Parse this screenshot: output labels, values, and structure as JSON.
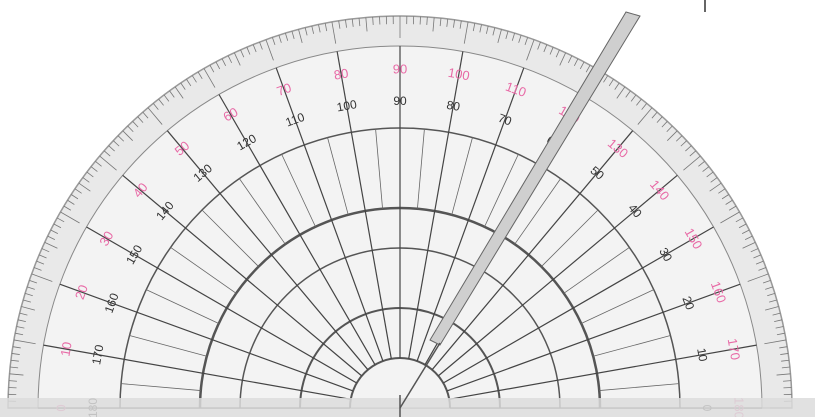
{
  "outer_scale": {
    "labels": [
      "0",
      "10",
      "20",
      "30",
      "40",
      "50",
      "60",
      "70",
      "80",
      "90",
      "100",
      "110",
      "120",
      "130",
      "140",
      "150",
      "160",
      "170",
      "180"
    ]
  },
  "inner_scale": {
    "labels": [
      "180",
      "170",
      "160",
      "150",
      "140",
      "130",
      "120",
      "110",
      "100",
      "90",
      "80",
      "70",
      "60",
      "50",
      "40",
      "30",
      "20",
      "10",
      "0"
    ]
  }
}
